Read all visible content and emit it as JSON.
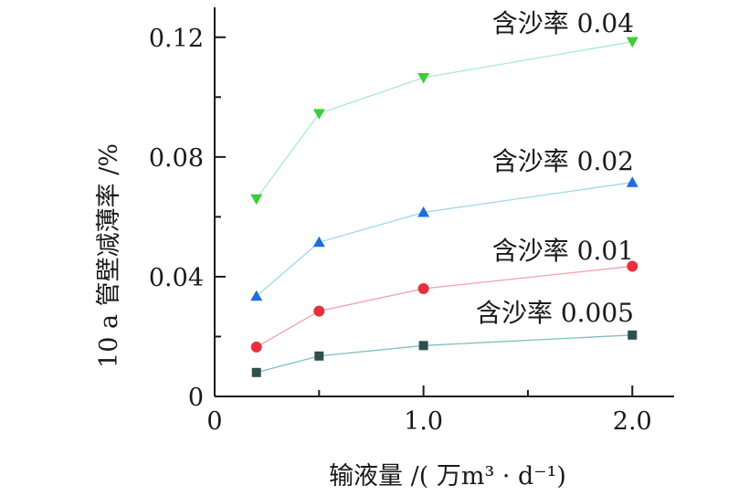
{
  "chart_data": {
    "type": "line",
    "title": "",
    "xlabel": "输液量 /( 万m³ · d⁻¹)",
    "ylabel": "10 a 管壁减薄率 /%",
    "xlim": [
      0,
      2.2
    ],
    "ylim": [
      0,
      0.13
    ],
    "x_ticks": [
      0,
      1.0,
      2.0
    ],
    "x_tick_labels": [
      "0",
      "1.0",
      "2.0"
    ],
    "y_ticks": [
      0,
      0.04,
      0.08,
      0.12
    ],
    "y_tick_labels": [
      "0",
      "0.04",
      "0.08",
      "0.12"
    ],
    "grid": false,
    "legend": "inline labels",
    "x": [
      0.2,
      0.5,
      1.0,
      2.0
    ],
    "series": [
      {
        "name": "含沙率 0.005",
        "values": [
          0.008,
          0.0135,
          0.017,
          0.0205
        ],
        "marker": "square",
        "color": "#2f4f4f",
        "line_color": "#7fbfbf"
      },
      {
        "name": "含沙率 0.01",
        "values": [
          0.0165,
          0.0285,
          0.036,
          0.0435
        ],
        "marker": "circle",
        "color": "#e8303c",
        "line_color": "#f2a0a8"
      },
      {
        "name": "含沙率 0.02",
        "values": [
          0.0335,
          0.0515,
          0.0615,
          0.0715
        ],
        "marker": "triangle-up",
        "color": "#1e6fd9",
        "line_color": "#9fd8e8"
      },
      {
        "name": "含沙率 0.04",
        "values": [
          0.066,
          0.0945,
          0.1065,
          0.1185
        ],
        "marker": "triangle-down",
        "color": "#3fcc3a",
        "line_color": "#a8e8d8"
      }
    ]
  }
}
